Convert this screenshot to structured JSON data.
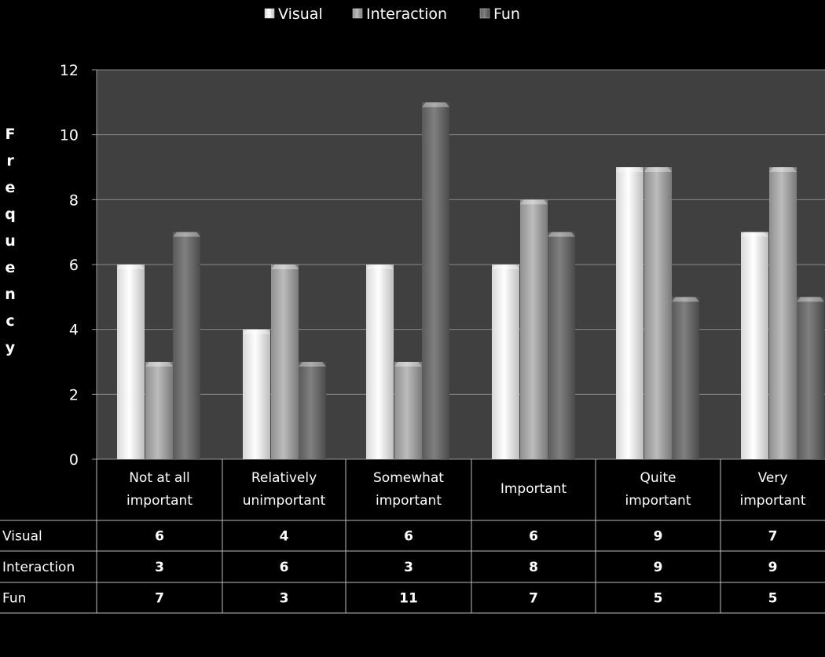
{
  "chart_data": {
    "type": "bar",
    "ylabel": "Frequency",
    "xlabel": "",
    "ylim": [
      0,
      12
    ],
    "yticks": [
      0,
      2,
      4,
      6,
      8,
      10,
      12
    ],
    "grid": true,
    "legend_position": "top",
    "categories": [
      [
        "Not at all",
        "important"
      ],
      [
        "Relatively",
        "unimportant"
      ],
      [
        "Somewhat",
        "important"
      ],
      [
        "Important"
      ],
      [
        "Quite",
        "important"
      ],
      [
        "Very",
        "important"
      ]
    ],
    "series": [
      {
        "name": "Visual",
        "values": [
          6,
          4,
          6,
          6,
          9,
          7
        ],
        "color": "#f2f2f2"
      },
      {
        "name": "Interaction",
        "values": [
          3,
          6,
          3,
          8,
          9,
          9
        ],
        "color": "#a8a8a8"
      },
      {
        "name": "Fun",
        "values": [
          7,
          3,
          11,
          7,
          5,
          5
        ],
        "color": "#6e6e6e"
      }
    ],
    "plot_background": "#404040",
    "page_background": "#000000"
  }
}
